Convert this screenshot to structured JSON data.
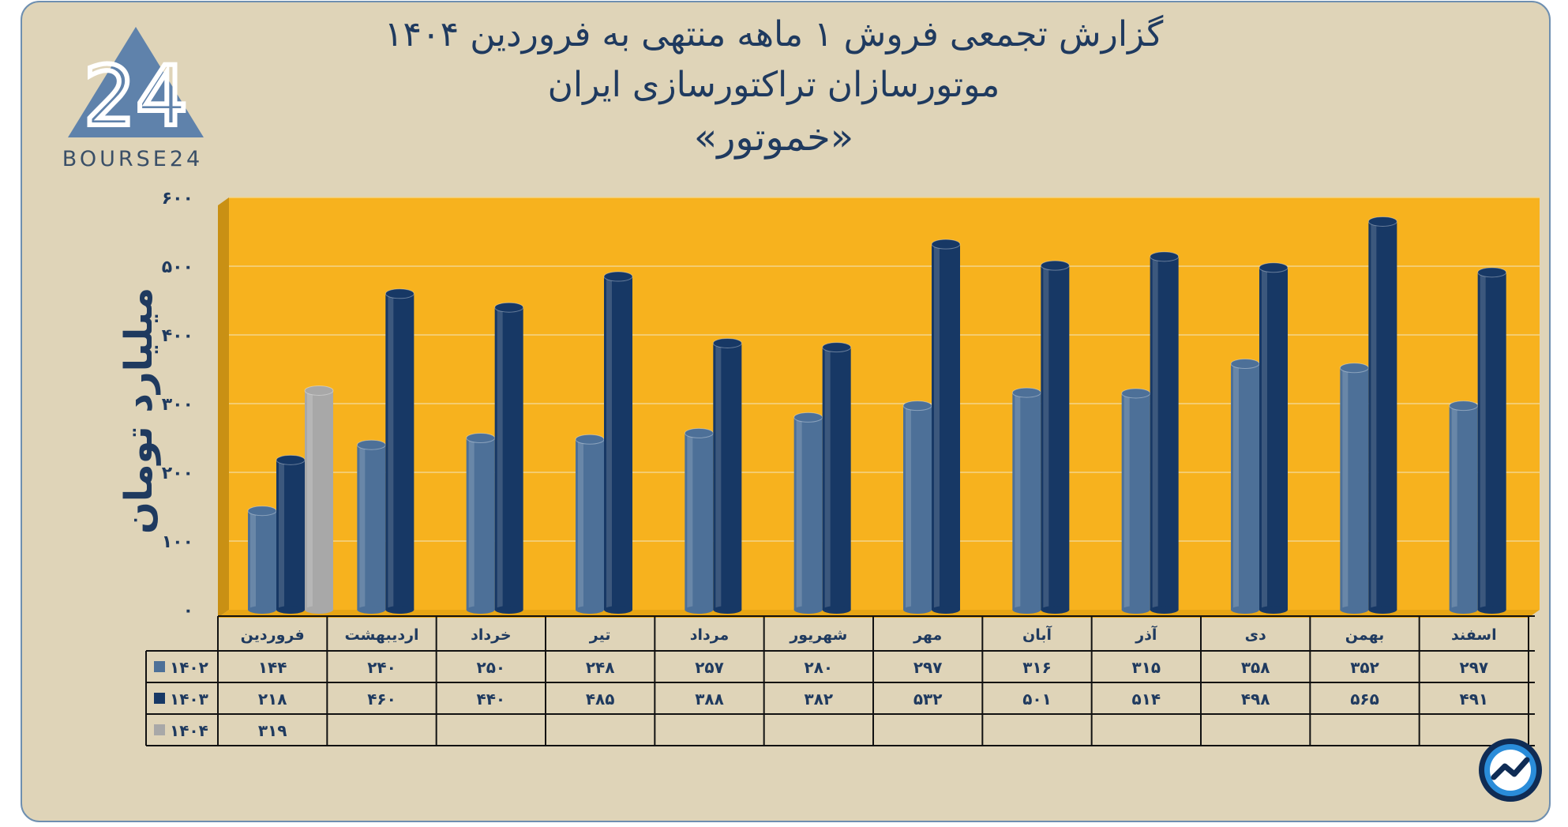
{
  "titles": {
    "line1": "گزارش تجمعی فروش ۱ ماهه منتهی به فروردین ۱۴۰۴",
    "line2": "موتورسازان تراکتورسازی ایران",
    "line3": "«خموتور»"
  },
  "logo": {
    "text": "BOURSE24",
    "mark": "24"
  },
  "icons": {
    "logo": "bourse24-logo-icon",
    "badge": "trend-chart-icon"
  },
  "colors": {
    "plot_bg": "#f7b21e",
    "plot_wall": "#c99014",
    "s1402": "#4d7098",
    "s1403": "#173865",
    "s1404": "#a8a8a8",
    "text": "#1f3a5f"
  },
  "chart_data": {
    "type": "bar",
    "ylabel": "میلیارد تومان",
    "ylim": [
      0,
      600
    ],
    "y_ticks": [
      "۰",
      "۱۰۰",
      "۲۰۰",
      "۳۰۰",
      "۴۰۰",
      "۵۰۰",
      "۶۰۰"
    ],
    "grid": true,
    "legend": "data-table",
    "categories": [
      "فروردین",
      "اردیبهشت",
      "خرداد",
      "تیر",
      "مرداد",
      "شهریور",
      "مهر",
      "آبان",
      "آذر",
      "دی",
      "بهمن",
      "اسفند"
    ],
    "series": [
      {
        "name": "۱۴۰۲",
        "color": "#4d7098",
        "values": [
          144,
          240,
          250,
          248,
          257,
          280,
          297,
          316,
          315,
          358,
          352,
          297
        ],
        "labels": [
          "۱۴۴",
          "۲۴۰",
          "۲۵۰",
          "۲۴۸",
          "۲۵۷",
          "۲۸۰",
          "۲۹۷",
          "۳۱۶",
          "۳۱۵",
          "۳۵۸",
          "۳۵۲",
          "۲۹۷"
        ]
      },
      {
        "name": "۱۴۰۳",
        "color": "#173865",
        "values": [
          218,
          460,
          440,
          485,
          388,
          382,
          532,
          501,
          514,
          498,
          565,
          491
        ],
        "labels": [
          "۲۱۸",
          "۴۶۰",
          "۴۴۰",
          "۴۸۵",
          "۳۸۸",
          "۳۸۲",
          "۵۳۲",
          "۵۰۱",
          "۵۱۴",
          "۴۹۸",
          "۵۶۵",
          "۴۹۱"
        ]
      },
      {
        "name": "۱۴۰۴",
        "color": "#a8a8a8",
        "values": [
          319,
          null,
          null,
          null,
          null,
          null,
          null,
          null,
          null,
          null,
          null,
          null
        ],
        "labels": [
          "۳۱۹",
          "",
          "",
          "",
          "",
          "",
          "",
          "",
          "",
          "",
          "",
          ""
        ]
      }
    ]
  }
}
